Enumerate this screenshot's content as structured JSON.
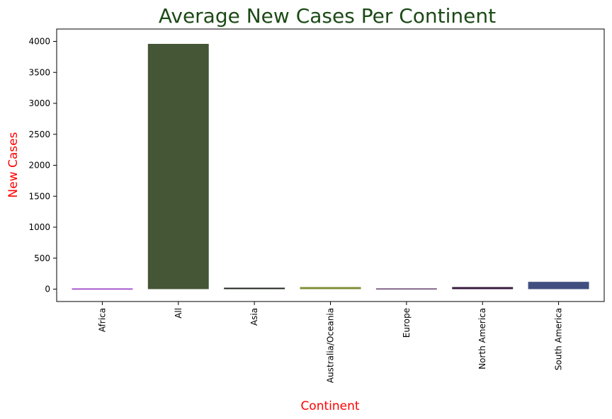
{
  "chart_data": {
    "type": "bar",
    "title": "Average New Cases Per Continent",
    "xlabel": "Continent",
    "ylabel": "New Cases",
    "categories": [
      "Africa",
      "All",
      "Asia",
      "Australia/Oceania",
      "Europe",
      "North America",
      "South America"
    ],
    "values": [
      2,
      3960,
      23,
      33,
      3,
      33,
      118
    ],
    "bar_colors": [
      "#7b00b3",
      "#445635",
      "#1e241c",
      "#7d8d34",
      "#3a0f46",
      "#35163b",
      "#414e80"
    ],
    "ylim": [
      -200,
      4200
    ],
    "yticks": [
      0,
      500,
      1000,
      1500,
      2000,
      2500,
      3000,
      3500,
      4000
    ],
    "grid": false,
    "x_tick_rotation": 90,
    "colors": {
      "title": "#1c4a16",
      "axis_labels": "#ff0000"
    }
  }
}
